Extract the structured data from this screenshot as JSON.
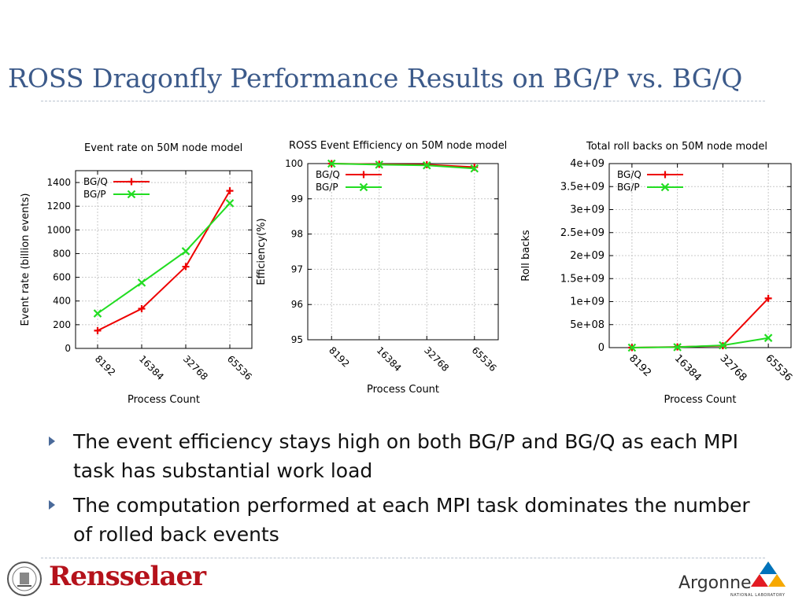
{
  "slide": {
    "title": "ROSS Dragonfly Performance Results on BG/P vs. BG/Q",
    "bullets": [
      "The event efficiency stays high on both BG/P and BG/Q as each MPI task has substantial work load",
      "The computation performed at each MPI task dominates the number of rolled back events"
    ]
  },
  "logos": {
    "rensselaer": "Rensselaer",
    "argonne": "Argonne",
    "argonne_sub": "NATIONAL LABORATORY"
  },
  "colors": {
    "bgq": "#ee0000",
    "bgp": "#22dd22",
    "title": "#3c5a8a"
  },
  "chart_data": [
    {
      "type": "line",
      "title": "Event rate on 50M node model",
      "xlabel": "Process Count",
      "ylabel": "Event rate (billion events)",
      "categories": [
        "8192",
        "16384",
        "32768",
        "65536"
      ],
      "yticks": [
        "0",
        "200",
        "400",
        "600",
        "800",
        "1000",
        "1200",
        "1400"
      ],
      "ylim": [
        0,
        1500
      ],
      "legend_position": "top-left",
      "series": [
        {
          "name": "BG/Q",
          "marker": "+",
          "values": [
            150,
            335,
            690,
            1330
          ]
        },
        {
          "name": "BG/P",
          "marker": "x",
          "values": [
            295,
            555,
            820,
            1225
          ]
        }
      ]
    },
    {
      "type": "line",
      "title": "ROSS Event Efficiency on 50M node model",
      "xlabel": "Process Count",
      "ylabel": "Efficiency(%)",
      "categories": [
        "8192",
        "16384",
        "32768",
        "65536"
      ],
      "yticks": [
        "95",
        "96",
        "97",
        "98",
        "99",
        "100"
      ],
      "ylim": [
        95,
        100
      ],
      "legend_position": "top-left",
      "series": [
        {
          "name": "BG/Q",
          "marker": "+",
          "values": [
            100,
            99.98,
            99.97,
            99.9
          ]
        },
        {
          "name": "BG/P",
          "marker": "x",
          "values": [
            100,
            99.97,
            99.95,
            99.86
          ]
        }
      ]
    },
    {
      "type": "line",
      "title": "Total roll backs on 50M node model",
      "xlabel": "Process Count",
      "ylabel": "Roll backs",
      "categories": [
        "8192",
        "16384",
        "32768",
        "65536"
      ],
      "yticks": [
        "0",
        "5e+08",
        "1e+09",
        "1.5e+09",
        "2e+09",
        "2.5e+09",
        "3e+09",
        "3.5e+09",
        "4e+09"
      ],
      "ylim": [
        0,
        4000000000
      ],
      "legend_position": "top-left",
      "series": [
        {
          "name": "BG/Q",
          "marker": "+",
          "values": [
            0,
            15000000,
            40000000,
            1070000000
          ]
        },
        {
          "name": "BG/P",
          "marker": "x",
          "values": [
            0,
            10000000,
            50000000,
            210000000
          ]
        }
      ]
    }
  ]
}
